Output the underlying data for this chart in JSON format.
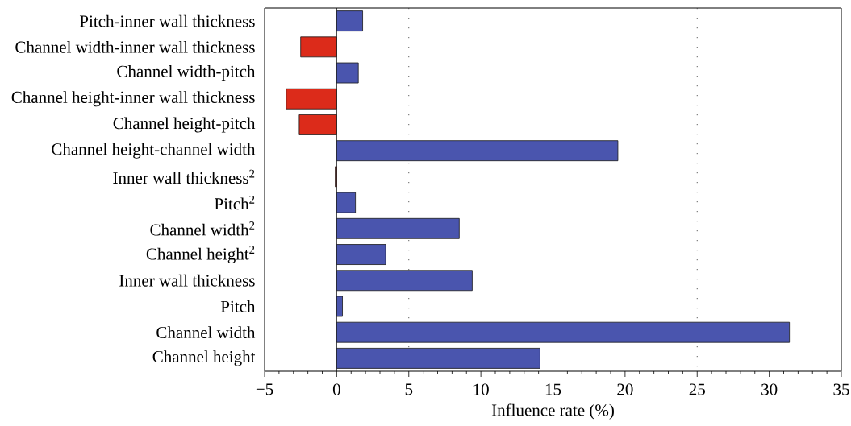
{
  "chart_data": {
    "type": "bar",
    "orientation": "horizontal",
    "xlabel": "Influence rate (%)",
    "categories": [
      "Pitch-inner wall thickness",
      "Channel width-inner wall thickness",
      "Channel width-pitch",
      "Channel height-inner wall thickness",
      "Channel height-pitch",
      "Channel height-channel width",
      "Inner wall thickness$^{2}$",
      "Pitch$^{2}$",
      "Channel width$^{2}$",
      "Channel height$^{2}$",
      "Inner wall thickness",
      "Pitch",
      "Channel width",
      "Channel height"
    ],
    "values": [
      1.8,
      -2.5,
      1.5,
      -3.5,
      -2.6,
      19.5,
      -0.1,
      1.3,
      8.5,
      3.4,
      9.4,
      0.4,
      31.4,
      14.1
    ],
    "colors": [
      "#4a55ae",
      "#dc2b1a",
      "#4a55ae",
      "#dc2b1a",
      "#dc2b1a",
      "#4a55ae",
      "#dc2b1a",
      "#4a55ae",
      "#4a55ae",
      "#4a55ae",
      "#4a55ae",
      "#4a55ae",
      "#4a55ae",
      "#4a55ae"
    ],
    "xlim": [
      -5,
      35
    ],
    "xticks": [
      {
        "value": -5,
        "label": "−5"
      },
      {
        "value": -4,
        "label": null
      },
      {
        "value": -3,
        "label": null
      },
      {
        "value": -2,
        "label": null
      },
      {
        "value": -1,
        "label": null
      },
      0,
      {
        "value": 1,
        "label": null
      },
      {
        "value": 2,
        "label": null
      },
      {
        "value": 3,
        "label": null
      },
      {
        "value": 4,
        "label": null
      },
      5,
      {
        "value": 6,
        "label": null
      },
      {
        "value": 7,
        "label": null
      },
      {
        "value": 8,
        "label": null
      },
      {
        "value": 9,
        "label": null
      },
      10,
      {
        "value": 11,
        "label": null
      },
      {
        "value": 12,
        "label": null
      },
      {
        "value": 13,
        "label": null
      },
      {
        "value": 14,
        "label": null
      },
      15,
      {
        "value": 16,
        "label": null
      },
      {
        "value": 17,
        "label": null
      },
      {
        "value": 18,
        "label": null
      },
      {
        "value": 19,
        "label": null
      },
      20,
      {
        "value": 21,
        "label": null
      },
      {
        "value": 22,
        "label": null
      },
      {
        "value": 23,
        "label": null
      },
      {
        "value": 24,
        "label": null
      },
      25,
      {
        "value": 26,
        "label": null
      },
      {
        "value": 27,
        "label": null
      },
      {
        "value": 28,
        "label": null
      },
      {
        "value": 29,
        "label": null
      },
      30,
      {
        "value": 31,
        "label": null
      },
      {
        "value": 32,
        "label": null
      },
      {
        "value": 33,
        "label": null
      },
      {
        "value": 34,
        "label": null
      },
      35
    ],
    "ref_lines": [
      {
        "axis": "x",
        "value": 0,
        "line_style": "solid",
        "color": "#000000"
      },
      {
        "axis": "x",
        "value": 5,
        "line_style": "dotted",
        "color": "#333333"
      },
      {
        "axis": "x",
        "value": 15,
        "line_style": "dotted",
        "color": "#333333"
      },
      {
        "axis": "x",
        "value": 25,
        "line_style": "dotted",
        "color": "#333333"
      }
    ]
  }
}
